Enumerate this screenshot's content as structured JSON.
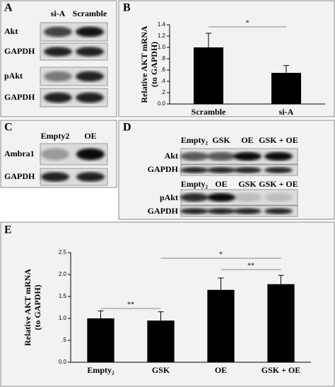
{
  "panels": [
    "A",
    "B",
    "C",
    "D",
    "E"
  ],
  "blots": {
    "A": {
      "lanes": [
        "si-A",
        "Scramble"
      ],
      "rows": [
        "Akt",
        "GAPDH",
        "pAkt",
        "GAPDH"
      ]
    },
    "C": {
      "lanes": [
        "Empty2",
        "OE"
      ],
      "rows": [
        "Ambra1",
        "GAPDH"
      ]
    },
    "D": {
      "lanes_top": [
        "Empty₂",
        "GSK",
        "OE",
        "GSK + OE"
      ],
      "rows_top": [
        "Akt",
        "GAPDH"
      ],
      "lanes_bottom": [
        "Empty₂",
        "OE",
        "GSK",
        "GSK + OE"
      ],
      "rows_bottom": [
        "pAkt",
        "GAPDH"
      ]
    }
  },
  "chart_data": [
    {
      "type": "bar",
      "ylabel": [
        "Relative AKT mRNA",
        "(to GAPDH)"
      ],
      "categories": [
        "Scramble",
        "si-A"
      ],
      "values": [
        1.0,
        0.55
      ],
      "errors": [
        0.25,
        0.13
      ],
      "color": "#000000",
      "ylim": [
        0,
        1.4
      ],
      "yticks": [
        {
          "value": 0,
          "label": "0.0"
        },
        {
          "value": 0.2,
          "label": ".2"
        },
        {
          "value": 0.4,
          "label": ".4"
        },
        {
          "value": 0.6,
          "label": ".6"
        },
        {
          "value": 0.8,
          "label": ".8"
        },
        {
          "value": 1.0,
          "label": "1.0"
        },
        1.2,
        1.4
      ],
      "annotations": [
        "*"
      ]
    },
    {
      "type": "bar",
      "ylabel": [
        "Relative AKT mRNA",
        "(to GAPDH)"
      ],
      "categories": [
        "Empty₂",
        "GSK",
        "OE",
        "GSK + OE"
      ],
      "values": [
        1.0,
        0.95,
        1.65,
        1.78
      ],
      "errors": [
        0.17,
        0.2,
        0.27,
        0.2
      ],
      "color": "#000000",
      "ylim": [
        0,
        2.5
      ],
      "yticks": [
        {
          "value": 0,
          "label": "0.0"
        },
        {
          "value": 0.5,
          "label": ".5"
        },
        {
          "value": 1.0,
          "label": "1.0"
        },
        1.5,
        {
          "value": 2.0,
          "label": "2.0"
        },
        2.5
      ],
      "annotations": [
        "**",
        "*",
        "**"
      ]
    }
  ]
}
